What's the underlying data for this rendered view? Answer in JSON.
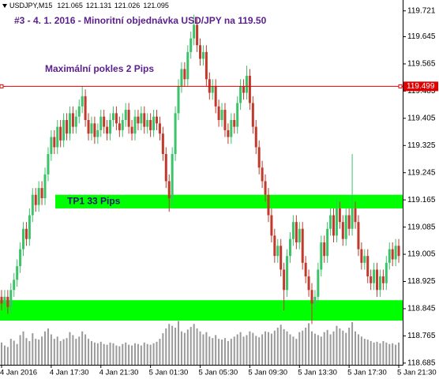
{
  "chart_data": {
    "type": "candlestick",
    "symbol": "USDJPY,M15",
    "header_ohlc": [
      121.065,
      121.131,
      121.026,
      121.095
    ],
    "title": "#3 - 4. 1. 2016 - Minoritní objednávka USD/JPY na 119.50",
    "annotations": [
      "Maximální pokles 2 Pips"
    ],
    "up_color": "#3cc36a",
    "down_color": "#c0392b",
    "volume_color": "#9a9a9a",
    "ylim": [
      118.68,
      119.753
    ],
    "yticks": [
      119.721,
      119.645,
      119.565,
      119.485,
      119.405,
      119.325,
      119.245,
      119.165,
      119.085,
      119.005,
      118.925,
      118.845,
      118.765,
      118.685
    ],
    "hline": {
      "value": 119.499,
      "color": "#e00000"
    },
    "zones": [
      {
        "label": "TP1 33 Pips",
        "from": 119.14,
        "to": 119.18,
        "color": "#00ff00"
      },
      {
        "from": 118.81,
        "to": 118.87,
        "color": "#00ff00"
      }
    ],
    "categories": [
      "4 Jan 2016",
      null,
      null,
      null,
      null,
      null,
      null,
      null,
      null,
      null,
      null,
      null,
      null,
      null,
      null,
      null,
      "4 Jan 17:30",
      null,
      null,
      null,
      null,
      null,
      null,
      null,
      null,
      null,
      null,
      null,
      null,
      null,
      null,
      null,
      "4 Jan 21:30",
      null,
      null,
      null,
      null,
      null,
      null,
      null,
      null,
      null,
      null,
      null,
      null,
      null,
      null,
      null,
      "5 Jan 01:30",
      null,
      null,
      null,
      null,
      null,
      null,
      null,
      null,
      null,
      null,
      null,
      null,
      null,
      null,
      null,
      "5 Jan 05:30",
      null,
      null,
      null,
      null,
      null,
      null,
      null,
      null,
      null,
      null,
      null,
      null,
      null,
      null,
      null,
      "5 Jan 09:30",
      null,
      null,
      null,
      null,
      null,
      null,
      null,
      null,
      null,
      null,
      null,
      null,
      null,
      null,
      null,
      "5 Jan 13:30",
      null,
      null,
      null,
      null,
      null,
      null,
      null,
      null,
      null,
      null,
      null,
      null,
      null,
      null,
      null,
      "5 Jan 17:30",
      null,
      null,
      null,
      null,
      null,
      null,
      null,
      null,
      null,
      null,
      null,
      null,
      null,
      null,
      null,
      "5 Jan 21:30"
    ],
    "candles": [
      [
        118.88,
        118.9,
        118.84,
        118.86
      ],
      [
        118.86,
        118.9,
        118.84,
        118.88
      ],
      [
        118.88,
        118.9,
        118.83,
        118.85
      ],
      [
        118.85,
        118.92,
        118.83,
        118.9
      ],
      [
        118.9,
        118.95,
        118.88,
        118.93
      ],
      [
        118.93,
        118.99,
        118.91,
        118.97
      ],
      [
        118.97,
        119.04,
        118.95,
        119.02
      ],
      [
        119.02,
        119.1,
        119.0,
        119.08
      ],
      [
        119.08,
        119.1,
        119.03,
        119.05
      ],
      [
        119.05,
        119.14,
        119.03,
        119.12
      ],
      [
        119.12,
        119.2,
        119.1,
        119.18
      ],
      [
        119.18,
        119.2,
        119.13,
        119.15
      ],
      [
        119.15,
        119.22,
        119.13,
        119.2
      ],
      [
        119.2,
        119.22,
        119.15,
        119.17
      ],
      [
        119.17,
        119.26,
        119.15,
        119.24
      ],
      [
        119.24,
        119.32,
        119.22,
        119.3
      ],
      [
        119.3,
        119.37,
        119.28,
        119.35
      ],
      [
        119.35,
        119.37,
        119.3,
        119.32
      ],
      [
        119.32,
        119.4,
        119.3,
        119.38
      ],
      [
        119.38,
        119.4,
        119.32,
        119.34
      ],
      [
        119.34,
        119.42,
        119.32,
        119.4
      ],
      [
        119.4,
        119.42,
        119.34,
        119.36
      ],
      [
        119.36,
        119.44,
        119.34,
        119.42
      ],
      [
        119.42,
        119.44,
        119.36,
        119.38
      ],
      [
        119.38,
        119.43,
        119.36,
        119.41
      ],
      [
        119.41,
        119.46,
        119.39,
        119.44
      ],
      [
        119.44,
        119.5,
        119.42,
        119.47
      ],
      [
        119.47,
        119.49,
        119.38,
        119.4
      ],
      [
        119.4,
        119.42,
        119.34,
        119.36
      ],
      [
        119.36,
        119.41,
        119.34,
        119.39
      ],
      [
        119.39,
        119.41,
        119.33,
        119.35
      ],
      [
        119.35,
        119.39,
        119.33,
        119.37
      ],
      [
        119.37,
        119.43,
        119.35,
        119.41
      ],
      [
        119.41,
        119.43,
        119.36,
        119.38
      ],
      [
        119.38,
        119.4,
        119.34,
        119.36
      ],
      [
        119.36,
        119.42,
        119.34,
        119.4
      ],
      [
        119.4,
        119.44,
        119.38,
        119.42
      ],
      [
        119.42,
        119.44,
        119.37,
        119.39
      ],
      [
        119.39,
        119.41,
        119.35,
        119.37
      ],
      [
        119.37,
        119.42,
        119.35,
        119.4
      ],
      [
        119.4,
        119.45,
        119.38,
        119.43
      ],
      [
        119.43,
        119.45,
        119.36,
        119.38
      ],
      [
        119.38,
        119.4,
        119.34,
        119.36
      ],
      [
        119.36,
        119.43,
        119.34,
        119.41
      ],
      [
        119.41,
        119.43,
        119.37,
        119.39
      ],
      [
        119.39,
        119.44,
        119.37,
        119.42
      ],
      [
        119.42,
        119.44,
        119.36,
        119.38
      ],
      [
        119.38,
        119.42,
        119.36,
        119.4
      ],
      [
        119.4,
        119.42,
        119.35,
        119.37
      ],
      [
        119.37,
        119.43,
        119.35,
        119.41
      ],
      [
        119.41,
        119.43,
        119.37,
        119.39
      ],
      [
        119.39,
        119.41,
        119.34,
        119.36
      ],
      [
        119.36,
        119.38,
        119.28,
        119.3
      ],
      [
        119.3,
        119.32,
        119.2,
        119.22
      ],
      [
        119.22,
        119.24,
        119.13,
        119.17
      ],
      [
        119.17,
        119.32,
        119.15,
        119.3
      ],
      [
        119.3,
        119.44,
        119.28,
        119.42
      ],
      [
        119.42,
        119.52,
        119.4,
        119.5
      ],
      [
        119.5,
        119.57,
        119.48,
        119.55
      ],
      [
        119.55,
        119.57,
        119.5,
        119.52
      ],
      [
        119.52,
        119.62,
        119.5,
        119.6
      ],
      [
        119.6,
        119.66,
        119.58,
        119.64
      ],
      [
        119.64,
        119.71,
        119.62,
        119.68
      ],
      [
        119.68,
        119.7,
        119.6,
        119.62
      ],
      [
        119.62,
        119.64,
        119.56,
        119.58
      ],
      [
        119.58,
        119.62,
        119.56,
        119.6
      ],
      [
        119.6,
        119.62,
        119.5,
        119.52
      ],
      [
        119.52,
        119.54,
        119.46,
        119.48
      ],
      [
        119.48,
        119.52,
        119.46,
        119.5
      ],
      [
        119.5,
        119.52,
        119.42,
        119.44
      ],
      [
        119.44,
        119.46,
        119.38,
        119.4
      ],
      [
        119.4,
        119.45,
        119.38,
        119.43
      ],
      [
        119.43,
        119.45,
        119.35,
        119.37
      ],
      [
        119.37,
        119.39,
        119.33,
        119.35
      ],
      [
        119.35,
        119.42,
        119.33,
        119.4
      ],
      [
        119.4,
        119.42,
        119.36,
        119.38
      ],
      [
        119.38,
        119.47,
        119.36,
        119.45
      ],
      [
        119.45,
        119.52,
        119.43,
        119.5
      ],
      [
        119.5,
        119.52,
        119.46,
        119.48
      ],
      [
        119.48,
        119.56,
        119.46,
        119.53
      ],
      [
        119.53,
        119.55,
        119.43,
        119.45
      ],
      [
        119.45,
        119.47,
        119.36,
        119.38
      ],
      [
        119.38,
        119.4,
        119.3,
        119.32
      ],
      [
        119.32,
        119.34,
        119.24,
        119.26
      ],
      [
        119.26,
        119.28,
        119.2,
        119.22
      ],
      [
        119.22,
        119.24,
        119.16,
        119.18
      ],
      [
        119.18,
        119.2,
        119.1,
        119.12
      ],
      [
        119.12,
        119.14,
        119.04,
        119.06
      ],
      [
        119.06,
        119.08,
        118.98,
        119.0
      ],
      [
        119.0,
        119.05,
        118.98,
        119.03
      ],
      [
        119.03,
        119.05,
        118.94,
        118.96
      ],
      [
        118.96,
        118.98,
        118.84,
        118.9
      ],
      [
        118.9,
        119.02,
        118.88,
        119.0
      ],
      [
        119.0,
        119.07,
        118.98,
        119.05
      ],
      [
        119.05,
        119.12,
        119.03,
        119.1
      ],
      [
        119.1,
        119.12,
        119.02,
        119.04
      ],
      [
        119.04,
        119.1,
        119.02,
        119.08
      ],
      [
        119.08,
        119.1,
        118.96,
        118.98
      ],
      [
        118.98,
        119.0,
        118.92,
        118.94
      ],
      [
        118.94,
        118.96,
        118.88,
        118.9
      ],
      [
        118.9,
        118.92,
        118.8,
        118.86
      ],
      [
        118.86,
        118.9,
        118.84,
        118.88
      ],
      [
        118.88,
        118.98,
        118.86,
        118.96
      ],
      [
        118.96,
        119.06,
        118.94,
        119.04
      ],
      [
        119.04,
        119.06,
        118.98,
        119.0
      ],
      [
        119.0,
        119.1,
        118.98,
        119.08
      ],
      [
        119.08,
        119.14,
        119.06,
        119.12
      ],
      [
        119.12,
        119.14,
        119.04,
        119.06
      ],
      [
        119.06,
        119.17,
        119.04,
        119.14
      ],
      [
        119.14,
        119.16,
        119.08,
        119.1
      ],
      [
        119.1,
        119.12,
        119.03,
        119.05
      ],
      [
        119.05,
        119.14,
        119.03,
        119.12
      ],
      [
        119.12,
        119.14,
        119.06,
        119.08
      ],
      [
        119.08,
        119.3,
        119.06,
        119.14
      ],
      [
        119.14,
        119.16,
        119.08,
        119.1
      ],
      [
        119.1,
        119.12,
        119.0,
        119.02
      ],
      [
        119.02,
        119.04,
        118.96,
        118.98
      ],
      [
        118.98,
        119.02,
        118.96,
        119.0
      ],
      [
        119.0,
        119.02,
        118.92,
        118.94
      ],
      [
        118.94,
        118.96,
        118.9,
        118.92
      ],
      [
        118.92,
        118.98,
        118.9,
        118.96
      ],
      [
        118.96,
        118.98,
        118.88,
        118.9
      ],
      [
        118.9,
        118.96,
        118.88,
        118.94
      ],
      [
        118.94,
        118.96,
        118.9,
        118.92
      ],
      [
        118.92,
        119.0,
        118.9,
        118.98
      ],
      [
        118.98,
        119.04,
        118.96,
        119.02
      ],
      [
        119.02,
        119.04,
        118.97,
        118.99
      ],
      [
        118.99,
        119.05,
        118.97,
        119.03
      ],
      [
        119.03,
        119.05,
        118.98,
        119.0
      ]
    ],
    "volumes": [
      600,
      520,
      480,
      700,
      650,
      560,
      800,
      900,
      720,
      640,
      850,
      700,
      680,
      760,
      900,
      980,
      820,
      700,
      760,
      640,
      690,
      720,
      880,
      800,
      700,
      760,
      900,
      820,
      700,
      640,
      600,
      580,
      620,
      560,
      540,
      600,
      580,
      520,
      500,
      560,
      600,
      540,
      520,
      580,
      560,
      520,
      600,
      560,
      540,
      580,
      620,
      700,
      850,
      980,
      1100,
      1050,
      1000,
      1180,
      900,
      860,
      950,
      1020,
      1100,
      980,
      900,
      820,
      880,
      760,
      720,
      800,
      700,
      680,
      720,
      640,
      700,
      760,
      820,
      880,
      760,
      800,
      900,
      860,
      780,
      740,
      820,
      900,
      880,
      840,
      920,
      1000,
      1080,
      960,
      900,
      820,
      760,
      700,
      880,
      920,
      1000,
      1120,
      900,
      840,
      800,
      760,
      880,
      940,
      820,
      900,
      1050,
      980,
      920,
      860,
      1000,
      1150,
      900,
      820,
      760,
      700,
      680,
      640,
      600,
      620,
      580,
      640,
      600,
      560,
      580,
      540,
      600
    ]
  }
}
